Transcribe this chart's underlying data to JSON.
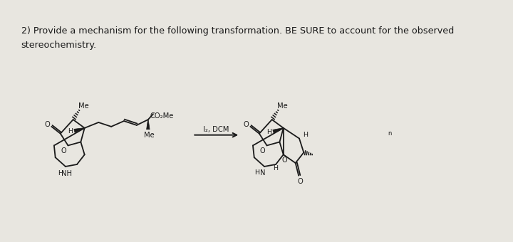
{
  "bg_color": "#e8e6e0",
  "text_color": "#1a1a1a",
  "title_line1": "2) Provide a mechanism for the following transformation. BE SURE to account for the observed",
  "title_line2": "stereochemistry.",
  "title_fontsize": 9.2,
  "figsize": [
    7.2,
    3.4
  ],
  "dpi": 100,
  "arrow_label": "I₂, DCM"
}
